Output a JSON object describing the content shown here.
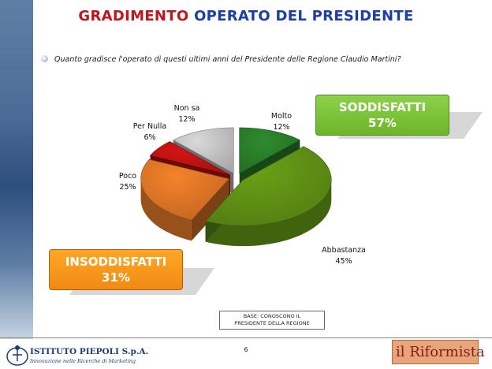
{
  "slide": {
    "title_part1": "GRADIMENTO",
    "title_part2": "OPERATO DEL PRESIDENTE",
    "question": "Quanto gradisce l'operato di questi ultimi anni del Presidente delle Regione Claudio Martini?",
    "satisfied": {
      "label": "SODDISFATTI",
      "value": "57%"
    },
    "unsatisfied": {
      "label": "INSODDISFATTI",
      "value": "31%"
    },
    "base_note": {
      "line1": "BASE: CONOSCONO IL",
      "line2": "PRESIDENTE DELLA REGIONE"
    },
    "page_number": "6",
    "footer": {
      "left_logo_name": "ISTITUTO PIEPOLI S.p.A.",
      "left_logo_tagline": "Innovazione nelle Ricerche di Marketing",
      "right_logo_text": "il Riformista"
    }
  },
  "colors": {
    "title_red": "#c0161b",
    "title_blue": "#1d3ea3",
    "molto": "#2e8b2e",
    "abbastanza": "#6aa017",
    "poco": "#f5822a",
    "per_nulla": "#d41414",
    "non_sa": "#d9d9d9"
  },
  "chart_data": {
    "type": "pie",
    "slices": [
      {
        "label": "Molto",
        "value": 12,
        "display": "12%",
        "color": "#2e8b2e"
      },
      {
        "label": "Abbastanza",
        "value": 45,
        "display": "45%",
        "color": "#6aa017"
      },
      {
        "label": "Poco",
        "value": 25,
        "display": "25%",
        "color": "#f5822a"
      },
      {
        "label": "Per Nulla",
        "value": 6,
        "display": "6%",
        "color": "#d41414"
      },
      {
        "label": "Non sa",
        "value": 12,
        "display": "12%",
        "color": "#d9d9d9"
      }
    ],
    "start": "top",
    "direction": "clockwise",
    "exploded": true,
    "style": "3d"
  }
}
